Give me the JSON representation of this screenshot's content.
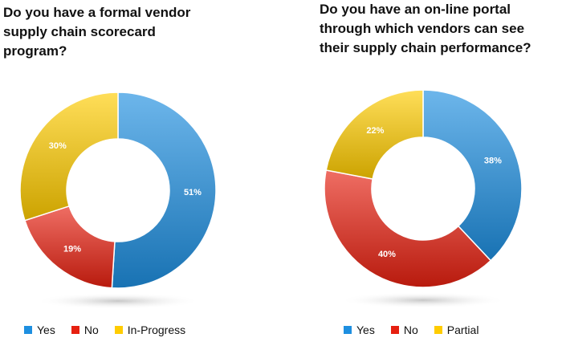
{
  "colors": {
    "yes": "#1e8fe0",
    "no": "#e62010",
    "third": "#ffcc00"
  },
  "chart_data": [
    {
      "type": "pie",
      "variant": "donut",
      "title": "Do you have a formal vendor\nsupply chain scorecard\nprogram?",
      "categories": [
        "Yes",
        "No",
        "In-Progress"
      ],
      "values": [
        51,
        19,
        30
      ],
      "labels": [
        "51%",
        "19%",
        "30%"
      ],
      "legend": "bottom"
    },
    {
      "type": "pie",
      "variant": "donut",
      "title": "Do you have an on-line portal\nthrough which vendors can see\ntheir supply chain performance?",
      "categories": [
        "Yes",
        "No",
        "Partial"
      ],
      "values": [
        38,
        40,
        22
      ],
      "labels": [
        "38%",
        "40%",
        "22%"
      ],
      "legend": "bottom"
    }
  ]
}
